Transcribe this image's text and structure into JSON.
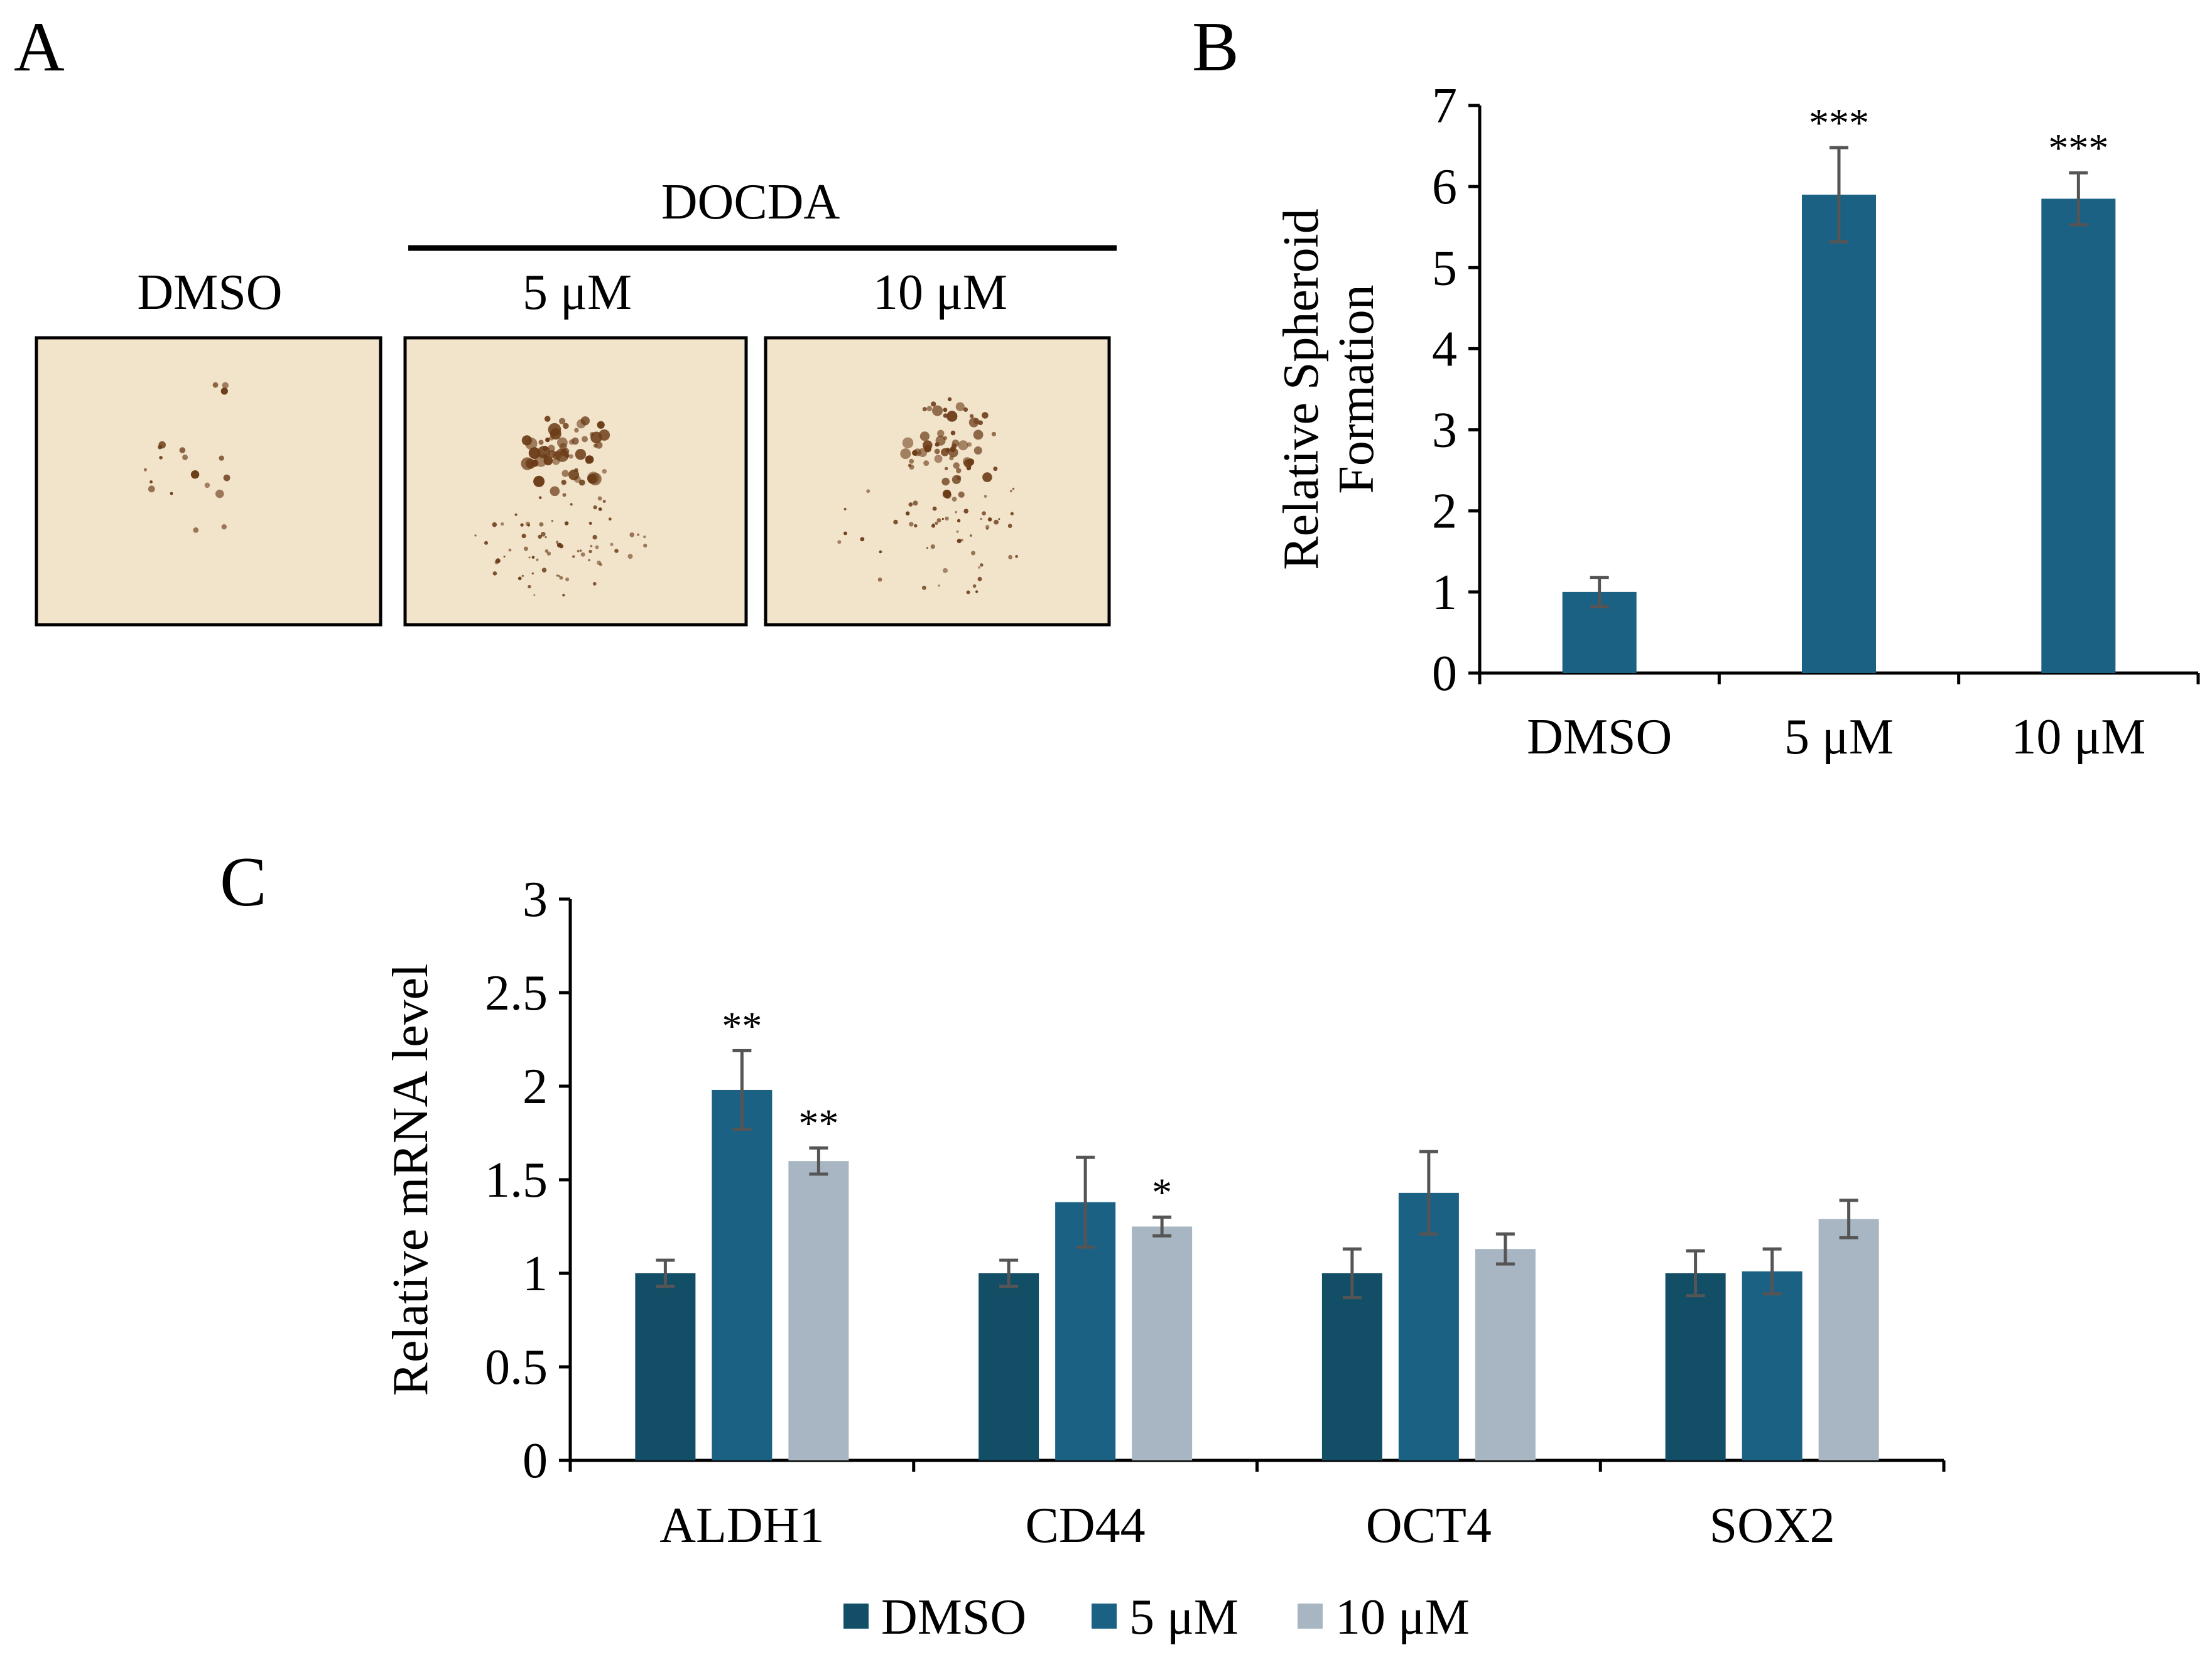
{
  "panels": {
    "A": {
      "letter": "A",
      "group_label": "DOCDA",
      "image_labels": [
        "DMSO",
        "5 μM",
        "10 μM"
      ]
    },
    "B": {
      "letter": "B"
    },
    "C": {
      "letter": "C"
    }
  },
  "colors": {
    "dmso": "#124e66",
    "um5": "#1a6184",
    "um10": "#a7b6c2",
    "single_bar": "#1a6184",
    "error_bar": "#555555",
    "photo_bg": "#f2e3cb",
    "speck": "#6b3c17"
  },
  "chart_data": [
    {
      "id": "B",
      "type": "bar",
      "title": "",
      "categories": [
        "DMSO",
        "5 μM",
        "10 μM"
      ],
      "values": [
        1.0,
        5.9,
        5.85
      ],
      "errors": [
        0.18,
        0.58,
        0.32
      ],
      "significance": [
        "",
        "***",
        "***"
      ],
      "ylabel_lines": [
        "Relative  Spheroid",
        "Formation"
      ],
      "xlabel": "",
      "ylim": [
        0,
        7
      ],
      "yticks": [
        0,
        1,
        2,
        3,
        4,
        5,
        6,
        7
      ],
      "grid": false
    },
    {
      "id": "C",
      "type": "bar",
      "title": "",
      "categories": [
        "ALDH1",
        "CD44",
        "OCT4",
        "SOX2"
      ],
      "series": [
        {
          "name": "DMSO",
          "values": [
            1.0,
            1.0,
            1.0,
            1.0
          ],
          "errors": [
            0.07,
            0.07,
            0.13,
            0.12
          ],
          "significance": [
            "",
            "",
            "",
            ""
          ]
        },
        {
          "name": "5 μM",
          "values": [
            1.98,
            1.38,
            1.43,
            1.01
          ],
          "errors": [
            0.21,
            0.24,
            0.22,
            0.12
          ],
          "significance": [
            "**",
            "",
            "",
            ""
          ]
        },
        {
          "name": "10 μM",
          "values": [
            1.6,
            1.25,
            1.13,
            1.29
          ],
          "errors": [
            0.07,
            0.05,
            0.08,
            0.1
          ],
          "significance": [
            "**",
            "*",
            "",
            ""
          ]
        }
      ],
      "ylabel": "Relative mRNA level",
      "xlabel": "",
      "ylim": [
        0,
        3
      ],
      "yticks": [
        "0",
        "0.5",
        "1",
        "1.5",
        "2",
        "2.5",
        "3"
      ],
      "grid": false,
      "legend_position": "bottom-center"
    }
  ]
}
